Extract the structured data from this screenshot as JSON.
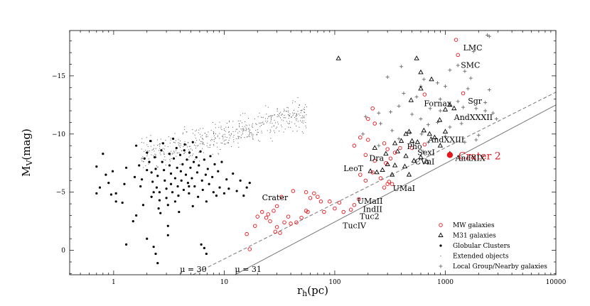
{
  "chart_data": {
    "type": "scatter",
    "xscale": "log",
    "xlim": [
      0.4,
      10000
    ],
    "ylim": [
      -18.9,
      2.1
    ],
    "y_inverted": true,
    "xlabel": "r_h(pc)",
    "ylabel": "M_V(mag)",
    "x_ticks": [
      {
        "v": 1,
        "label": "1"
      },
      {
        "v": 10,
        "label": "10"
      },
      {
        "v": 100,
        "label": "100"
      },
      {
        "v": 1000,
        "label": "1000"
      },
      {
        "v": 10000,
        "label": "10000"
      }
    ],
    "y_ticks": [
      {
        "v": 0,
        "label": "0"
      },
      {
        "v": -5,
        "label": "−5"
      },
      {
        "v": -10,
        "label": "−10"
      },
      {
        "v": -15,
        "label": "−15"
      }
    ],
    "legend_position": "lower-right",
    "legend": [
      {
        "key": "mw",
        "label": "MW galaxies"
      },
      {
        "key": "m31",
        "label": "M31 galaxies"
      },
      {
        "key": "gc",
        "label": "Globular Clusters"
      },
      {
        "key": "ext",
        "label": "Extended objects"
      },
      {
        "key": "lg",
        "label": "Local Group/Nearby galaxies"
      }
    ],
    "colors": {
      "mw": "#e8141c",
      "m31": "#000000",
      "gc": "#000000",
      "ext": "#555555",
      "lg": "#777777",
      "crater2": "#e8141c",
      "lines": "#777777"
    },
    "mu_lines": [
      {
        "mu": 30,
        "style": "dashed",
        "label": "μ = 30",
        "x": [
          5.2,
          10000
        ],
        "y": [
          2.1,
          -13.6
        ]
      },
      {
        "mu": 31,
        "style": "solid",
        "label": "μ = 31",
        "x": [
          12.5,
          10000
        ],
        "y": [
          2.1,
          -12.5
        ]
      }
    ],
    "highlight": {
      "name": "Crater 2",
      "label": "Crater 2",
      "x": 1100,
      "y": -8.2
    },
    "series": [
      {
        "key": "mw",
        "name": "MW galaxies",
        "points": [
          [
            1250,
            -18.1
          ],
          [
            1300,
            -16.8
          ],
          [
            650,
            -13.4
          ],
          [
            1450,
            -13.5
          ],
          [
            220,
            -12.2
          ],
          [
            200,
            -11.3
          ],
          [
            230,
            -10.9
          ],
          [
            170,
            -9.7
          ],
          [
            150,
            -9.0
          ],
          [
            200,
            -9.5
          ],
          [
            280,
            -9.2
          ],
          [
            300,
            -8.7
          ],
          [
            190,
            -8.2
          ],
          [
            230,
            -7.7
          ],
          [
            290,
            -7.5
          ],
          [
            320,
            -7.9
          ],
          [
            350,
            -8.4
          ],
          [
            390,
            -8.8
          ],
          [
            500,
            -8.8
          ],
          [
            650,
            -9.1
          ],
          [
            170,
            -6.5
          ],
          [
            190,
            -6.0
          ],
          [
            220,
            -6.7
          ],
          [
            260,
            -6.2
          ],
          [
            310,
            -5.9
          ],
          [
            280,
            -5.4
          ],
          [
            330,
            -5.7
          ],
          [
            165,
            -4.4
          ],
          [
            150,
            -3.9
          ],
          [
            140,
            -3.5
          ],
          [
            110,
            -4.1
          ],
          [
            120,
            -3.3
          ],
          [
            90,
            -4.2
          ],
          [
            75,
            -4.2
          ],
          [
            55,
            -5.0
          ],
          [
            60,
            -4.5
          ],
          [
            65,
            -4.9
          ],
          [
            70,
            -4.6
          ],
          [
            42,
            -5.1
          ],
          [
            33,
            -4.6
          ],
          [
            30,
            -3.8
          ],
          [
            28,
            -3.4
          ],
          [
            25,
            -3.1
          ],
          [
            22,
            -3.3
          ],
          [
            24,
            -2.8
          ],
          [
            20,
            -2.9
          ],
          [
            19,
            -2.1
          ],
          [
            26,
            -2.5
          ],
          [
            35,
            -2.4
          ],
          [
            38,
            -2.9
          ],
          [
            40,
            -2.3
          ],
          [
            45,
            -2.4
          ],
          [
            50,
            -2.8
          ],
          [
            30,
            -2.0
          ],
          [
            32,
            -1.5
          ],
          [
            29,
            -1.6
          ],
          [
            16,
            -1.4
          ],
          [
            17,
            -0.1
          ],
          [
            55,
            -3.4
          ],
          [
            57,
            -3.3
          ],
          [
            80,
            -3.3
          ],
          [
            100,
            -3.6
          ],
          [
            300,
            -5.7
          ]
        ]
      },
      {
        "key": "m31",
        "name": "M31 galaxies",
        "points": [
          [
            108,
            -16.5
          ],
          [
            550,
            -16.5
          ],
          [
            600,
            -15.3
          ],
          [
            750,
            -14.7
          ],
          [
            600,
            -13.9
          ],
          [
            490,
            -12.9
          ],
          [
            1100,
            -12.5
          ],
          [
            1200,
            -12.2
          ],
          [
            1000,
            -12.1
          ],
          [
            890,
            -11.2
          ],
          [
            470,
            -10.2
          ],
          [
            440,
            -10.0
          ],
          [
            640,
            -10.3
          ],
          [
            720,
            -10.0
          ],
          [
            1000,
            -10.2
          ],
          [
            400,
            -9.4
          ],
          [
            500,
            -9.4
          ],
          [
            350,
            -9.2
          ],
          [
            560,
            -9.3
          ],
          [
            230,
            -8.8
          ],
          [
            290,
            -8.3
          ],
          [
            370,
            -8.5
          ],
          [
            440,
            -8.1
          ],
          [
            520,
            -7.7
          ],
          [
            600,
            -8.0
          ],
          [
            350,
            -7.3
          ],
          [
            430,
            -7.2
          ],
          [
            470,
            -6.5
          ],
          [
            240,
            -6.7
          ],
          [
            270,
            -6.9
          ],
          [
            300,
            -7.4
          ],
          [
            210,
            -6.8
          ],
          [
            330,
            -6.5
          ],
          [
            680,
            -7.6
          ],
          [
            1100,
            -8.3
          ],
          [
            900,
            -9.0
          ],
          [
            800,
            -9.7
          ]
        ]
      },
      {
        "key": "lg",
        "name": "Local Group/Nearby galaxies",
        "points": [
          [
            2400,
            -18.5
          ],
          [
            2500,
            -18.4
          ],
          [
            1800,
            -17.1
          ],
          [
            1300,
            -15.9
          ],
          [
            1100,
            -15.5
          ],
          [
            1500,
            -15.4
          ],
          [
            1700,
            -14.8
          ],
          [
            400,
            -15.8
          ],
          [
            300,
            -14.9
          ],
          [
            640,
            -14.7
          ],
          [
            850,
            -14.4
          ],
          [
            600,
            -14.1
          ],
          [
            1000,
            -14.1
          ],
          [
            1600,
            -13.9
          ],
          [
            2500,
            -13.8
          ],
          [
            420,
            -13.5
          ],
          [
            550,
            -13.2
          ],
          [
            900,
            -13.0
          ],
          [
            1300,
            -12.8
          ],
          [
            2300,
            -12.7
          ],
          [
            380,
            -12.4
          ],
          [
            730,
            -12.2
          ],
          [
            900,
            -12.0
          ],
          [
            1450,
            -12.3
          ],
          [
            1900,
            -12.2
          ],
          [
            2300,
            -12.0
          ],
          [
            2700,
            -11.8
          ],
          [
            190,
            -11.5
          ],
          [
            250,
            -11.8
          ],
          [
            320,
            -11.9
          ],
          [
            500,
            -11.7
          ],
          [
            600,
            -11.3
          ],
          [
            2900,
            -11.3
          ],
          [
            260,
            -10.9
          ],
          [
            700,
            -10.8
          ],
          [
            850,
            -11.0
          ],
          [
            1100,
            -10.6
          ],
          [
            1400,
            -10.9
          ],
          [
            330,
            -10.3
          ],
          [
            480,
            -10.1
          ],
          [
            610,
            -10.0
          ],
          [
            1000,
            -9.8
          ],
          [
            2000,
            -9.9
          ],
          [
            380,
            -9.6
          ],
          [
            700,
            -9.3
          ],
          [
            1500,
            -9.3
          ],
          [
            630,
            -8.5
          ],
          [
            250,
            -9.0
          ],
          [
            180,
            -10.0
          ],
          [
            1900,
            -9.5
          ]
        ]
      },
      {
        "key": "gc",
        "name": "Globular Clusters",
        "points": [
          [
            0.7,
            -7.2
          ],
          [
            0.8,
            -8.3
          ],
          [
            0.85,
            -6.5
          ],
          [
            0.9,
            -5.8
          ],
          [
            0.95,
            -4.8
          ],
          [
            0.75,
            -5.4
          ],
          [
            0.7,
            -4.9
          ],
          [
            1.05,
            -4.2
          ],
          [
            1.2,
            -4.1
          ],
          [
            1.3,
            -7.1
          ],
          [
            1.5,
            -2.5
          ],
          [
            1.55,
            -6.3
          ],
          [
            1.6,
            -9.0
          ],
          [
            1.7,
            -7.3
          ],
          [
            1.75,
            -5.5
          ],
          [
            1.8,
            -6.1
          ],
          [
            1.85,
            -3.9
          ],
          [
            1.9,
            -7.9
          ],
          [
            2.0,
            -8.4
          ],
          [
            2.1,
            -7.6
          ],
          [
            2.2,
            -6.7
          ],
          [
            2.25,
            -5.9
          ],
          [
            2.3,
            -5.0
          ],
          [
            2.2,
            -4.6
          ],
          [
            2.15,
            -9.4
          ],
          [
            2.35,
            -8.0
          ],
          [
            2.4,
            -7.0
          ],
          [
            2.5,
            -6.4
          ],
          [
            2.45,
            -5.4
          ],
          [
            2.6,
            -4.3
          ],
          [
            2.55,
            -3.6
          ],
          [
            2.65,
            -3.2
          ],
          [
            2.7,
            -8.6
          ],
          [
            2.8,
            -9.2
          ],
          [
            2.75,
            -7.6
          ],
          [
            2.85,
            -6.9
          ],
          [
            2.9,
            -6.0
          ],
          [
            3.0,
            -5.3
          ],
          [
            3.0,
            -4.5
          ],
          [
            3.1,
            -3.9
          ],
          [
            3.1,
            -2.1
          ],
          [
            3.2,
            -8.3
          ],
          [
            3.2,
            -7.3
          ],
          [
            3.3,
            -6.6
          ],
          [
            3.3,
            -5.7
          ],
          [
            3.4,
            -5.0
          ],
          [
            3.45,
            -9.6
          ],
          [
            3.5,
            -7.9
          ],
          [
            3.6,
            -6.2
          ],
          [
            3.6,
            -4.2
          ],
          [
            3.7,
            -8.8
          ],
          [
            3.75,
            -7.1
          ],
          [
            3.8,
            -5.5
          ],
          [
            3.85,
            -4.7
          ],
          [
            3.9,
            -3.3
          ],
          [
            4.0,
            -8.2
          ],
          [
            4.05,
            -6.8
          ],
          [
            4.1,
            -6.0
          ],
          [
            4.2,
            -7.4
          ],
          [
            4.3,
            -5.2
          ],
          [
            4.35,
            -8.6
          ],
          [
            4.4,
            -9.1
          ],
          [
            4.5,
            -6.5
          ],
          [
            4.6,
            -7.8
          ],
          [
            4.7,
            -5.8
          ],
          [
            4.8,
            -4.9
          ],
          [
            4.85,
            -8.4
          ],
          [
            4.95,
            -7.1
          ],
          [
            5.1,
            -6.2
          ],
          [
            5.2,
            -9.3
          ],
          [
            5.3,
            -7.6
          ],
          [
            5.4,
            -5.5
          ],
          [
            5.6,
            -8.0
          ],
          [
            5.7,
            -6.7
          ],
          [
            5.8,
            -4.6
          ],
          [
            5.9,
            -7.3
          ],
          [
            6.1,
            -8.5
          ],
          [
            6.3,
            -6.0
          ],
          [
            6.4,
            -5.2
          ],
          [
            6.6,
            -7.8
          ],
          [
            6.8,
            -6.5
          ],
          [
            6.9,
            -4.2
          ],
          [
            7.1,
            -7.0
          ],
          [
            7.3,
            -5.7
          ],
          [
            7.5,
            -8.1
          ],
          [
            7.8,
            -6.3
          ],
          [
            8.0,
            -5.0
          ],
          [
            8.2,
            -7.4
          ],
          [
            8.5,
            -4.7
          ],
          [
            8.8,
            -6.8
          ],
          [
            9.1,
            -5.4
          ],
          [
            9.5,
            -7.6
          ],
          [
            10.0,
            -4.9
          ],
          [
            10.5,
            -6.1
          ],
          [
            11.0,
            -5.3
          ],
          [
            12.0,
            -6.6
          ],
          [
            13.0,
            -5.1
          ],
          [
            14.0,
            -6.0
          ],
          [
            15.0,
            -4.7
          ],
          [
            16.0,
            -5.4
          ],
          [
            17.0,
            -5.8
          ],
          [
            2.3,
            -0.3
          ],
          [
            2.4,
            0.3
          ],
          [
            2.5,
            1.1
          ],
          [
            3.1,
            -1.3
          ],
          [
            6.2,
            -0.5
          ],
          [
            6.6,
            -0.2
          ],
          [
            6.9,
            0.3
          ],
          [
            1.3,
            -0.5
          ],
          [
            1.05,
            -4.9
          ],
          [
            1.25,
            -5.7
          ],
          [
            2.0,
            -1.0
          ],
          [
            1.6,
            -3.0
          ],
          [
            2.0,
            -6.9
          ],
          [
            2.6,
            -5.0
          ],
          [
            4.8,
            -5.5
          ],
          [
            5.2,
            -3.8
          ],
          [
            0.98,
            -6.8
          ]
        ]
      }
    ],
    "labels": [
      {
        "text": "LMC",
        "x": 1450,
        "y": -17.2
      },
      {
        "text": "SMC",
        "x": 1380,
        "y": -15.7
      },
      {
        "text": "Fornax",
        "x": 640,
        "y": -12.4
      },
      {
        "text": "Sgr",
        "x": 1600,
        "y": -12.6
      },
      {
        "text": "AndXXXII",
        "x": 1200,
        "y": -11.2
      },
      {
        "text": "AndXXIII",
        "x": 700,
        "y": -9.3
      },
      {
        "text": "Pho",
        "x": 450,
        "y": -8.7
      },
      {
        "text": "SexI",
        "x": 560,
        "y": -8.2
      },
      {
        "text": "CVnI",
        "x": 530,
        "y": -7.4
      },
      {
        "text": "AndXIX",
        "x": 1230,
        "y": -7.7
      },
      {
        "text": "Dra",
        "x": 205,
        "y": -7.7
      },
      {
        "text": "LeoT",
        "x": 120,
        "y": -6.8
      },
      {
        "text": "UMaI",
        "x": 335,
        "y": -5.1
      },
      {
        "text": "Crater",
        "x": 22,
        "y": -4.3
      },
      {
        "text": "UMaII",
        "x": 160,
        "y": -4.0
      },
      {
        "text": "IndII",
        "x": 180,
        "y": -3.3
      },
      {
        "text": "Tuc2",
        "x": 168,
        "y": -2.7
      },
      {
        "text": "TucIV",
        "x": 118,
        "y": -1.9
      }
    ],
    "extended_objects_note": "cloud of small dots concentrated at r_h 1.5–50 pc, M_V −4 to −13"
  }
}
